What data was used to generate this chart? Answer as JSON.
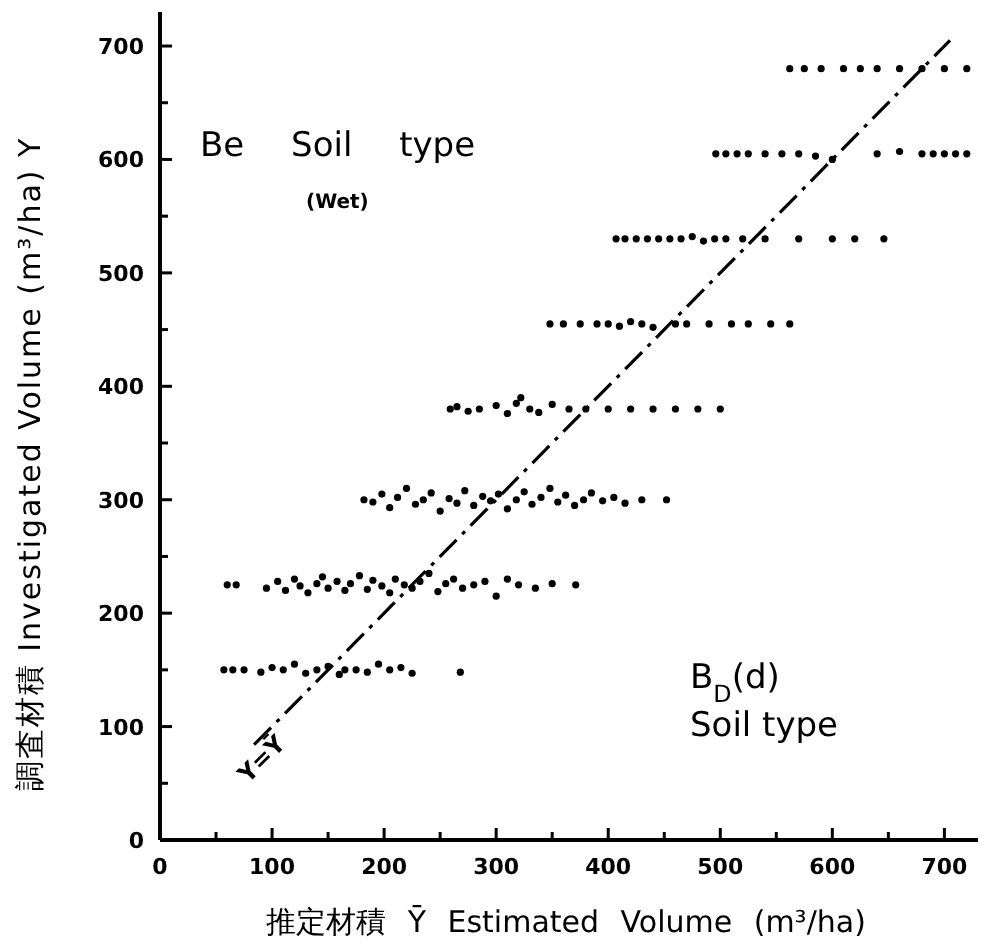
{
  "chart_data": {
    "type": "scatter",
    "xlabel": "推定材積 Ȳ Estimated Volume (m³/ha)",
    "ylabel": "調査材積 Investigated Volume (m³/ha) Y",
    "xlim": [
      0,
      730
    ],
    "ylim": [
      0,
      730
    ],
    "xticks": [
      0,
      {
        "value": 50,
        "label": null
      },
      100,
      {
        "value": 150,
        "label": null
      },
      200,
      {
        "value": 250,
        "label": null
      },
      300,
      {
        "value": 350,
        "label": null
      },
      400,
      {
        "value": 450,
        "label": null
      },
      500,
      {
        "value": 550,
        "label": null
      },
      600,
      {
        "value": 650,
        "label": null
      },
      700
    ],
    "yticks": [
      0,
      {
        "value": 50,
        "label": null
      },
      100,
      {
        "value": 150,
        "label": null
      },
      200,
      {
        "value": 250,
        "label": null
      },
      300,
      {
        "value": 350,
        "label": null
      },
      400,
      {
        "value": 450,
        "label": null
      },
      500,
      {
        "value": 550,
        "label": null
      },
      600,
      {
        "value": 650,
        "label": null
      },
      700
    ],
    "grid": false,
    "series": [
      {
        "type": "scatter",
        "color": "#000000",
        "marker": "circle",
        "x": [
          57,
          65,
          75,
          90,
          100,
          110,
          120,
          130,
          140,
          150,
          160,
          165,
          175,
          185,
          195,
          205,
          215,
          225,
          268,
          60,
          68,
          95,
          105,
          112,
          120,
          125,
          132,
          140,
          145,
          150,
          158,
          165,
          170,
          178,
          185,
          190,
          198,
          205,
          210,
          218,
          225,
          232,
          240,
          248,
          255,
          262,
          270,
          280,
          290,
          300,
          310,
          320,
          335,
          350,
          371,
          182,
          190,
          198,
          205,
          212,
          220,
          228,
          235,
          242,
          250,
          258,
          265,
          272,
          280,
          288,
          295,
          302,
          310,
          318,
          325,
          332,
          340,
          348,
          355,
          362,
          370,
          378,
          385,
          395,
          405,
          415,
          430,
          452,
          259,
          265,
          275,
          285,
          300,
          310,
          318,
          322,
          330,
          338,
          350,
          365,
          380,
          400,
          420,
          440,
          460,
          480,
          500,
          348,
          360,
          375,
          390,
          400,
          410,
          420,
          430,
          440,
          460,
          470,
          490,
          510,
          525,
          545,
          562,
          407,
          415,
          425,
          435,
          445,
          455,
          465,
          475,
          485,
          495,
          505,
          520,
          540,
          570,
          600,
          620,
          646,
          496,
          505,
          515,
          525,
          540,
          555,
          570,
          585,
          600,
          640,
          660,
          680,
          690,
          700,
          710,
          720,
          562,
          575,
          590,
          610,
          625,
          640,
          660,
          680,
          700,
          720
        ],
        "values": [
          150,
          150,
          150,
          148,
          152,
          150,
          155,
          147,
          150,
          153,
          146,
          150,
          150,
          148,
          155,
          150,
          152,
          147,
          148,
          225,
          225,
          222,
          228,
          220,
          230,
          224,
          218,
          226,
          232,
          222,
          228,
          220,
          226,
          233,
          221,
          229,
          224,
          218,
          230,
          225,
          222,
          228,
          235,
          219,
          226,
          230,
          222,
          225,
          228,
          215,
          230,
          225,
          222,
          226,
          225,
          300,
          298,
          305,
          293,
          302,
          310,
          296,
          300,
          306,
          290,
          301,
          297,
          308,
          295,
          303,
          299,
          305,
          292,
          300,
          307,
          296,
          302,
          310,
          298,
          304,
          295,
          300,
          306,
          299,
          302,
          297,
          300,
          300,
          380,
          382,
          378,
          380,
          383,
          376,
          385,
          390,
          380,
          377,
          384,
          380,
          380,
          380,
          380,
          380,
          380,
          380,
          380,
          455,
          455,
          455,
          455,
          455,
          453,
          457,
          455,
          452,
          455,
          455,
          455,
          455,
          455,
          455,
          455,
          530,
          530,
          530,
          530,
          530,
          530,
          530,
          532,
          528,
          530,
          530,
          530,
          530,
          530,
          530,
          530,
          530,
          605,
          605,
          605,
          605,
          605,
          605,
          605,
          603,
          600,
          605,
          607,
          605,
          605,
          605,
          605,
          605,
          680,
          680,
          680,
          680,
          680,
          680,
          680,
          680,
          680,
          680
        ]
      },
      {
        "type": "line",
        "color": "#000000",
        "marker": "none",
        "line_style": "dashed",
        "x": [
          84,
          705
        ],
        "values": [
          84,
          705
        ]
      }
    ],
    "annotations": [
      "Be Soil type",
      "(Wet)",
      "B$_{D}$(d)",
      "Soil type",
      "Y=Ȳ"
    ]
  }
}
